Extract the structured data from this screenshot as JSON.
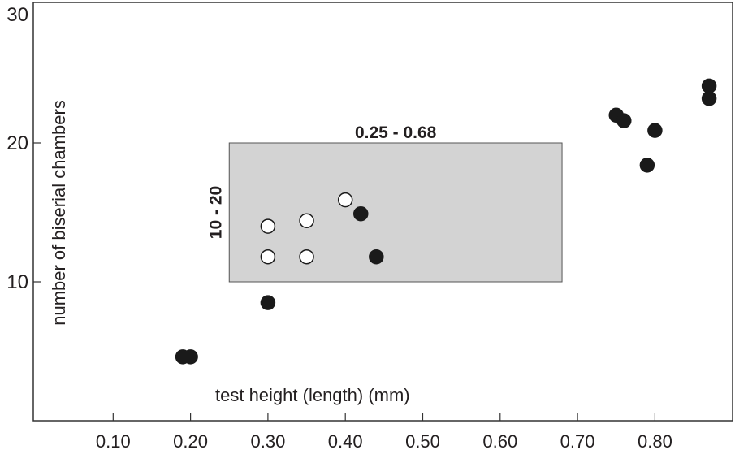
{
  "chart_data": {
    "type": "scatter",
    "xlabel": "test height (length) (mm)",
    "ylabel": "number of biserial chambers",
    "xlim": [
      0,
      0.9
    ],
    "ylim": [
      0,
      30
    ],
    "x_ticks": [
      0.1,
      0.2,
      0.3,
      0.4,
      0.5,
      0.6,
      0.7,
      0.8
    ],
    "x_tick_labels": [
      "0.10",
      "0.20",
      "0.30",
      "0.40",
      "0.50",
      "0.60",
      "0.70",
      "0.80"
    ],
    "y_ticks": [
      10,
      20,
      30
    ],
    "y_tick_labels": [
      "10",
      "20",
      "30"
    ],
    "grid": false,
    "highlight_region": {
      "x_range": [
        0.25,
        0.68
      ],
      "y_range": [
        10,
        20
      ],
      "x_label": "0.25 - 0.68",
      "y_label": "10 - 20",
      "color": "#d3d3d3"
    },
    "series": [
      {
        "marker": "filled-circle",
        "color": "#1a1a1a",
        "points": [
          [
            0.19,
            4.6
          ],
          [
            0.2,
            4.6
          ],
          [
            0.3,
            8.5
          ],
          [
            0.42,
            14.9
          ],
          [
            0.44,
            11.8
          ],
          [
            0.75,
            22.0
          ],
          [
            0.76,
            21.6
          ],
          [
            0.79,
            18.4
          ],
          [
            0.8,
            20.9
          ],
          [
            0.87,
            24.1
          ],
          [
            0.87,
            23.2
          ]
        ]
      },
      {
        "marker": "open-circle",
        "color": "#ffffff",
        "points": [
          [
            0.3,
            14.0
          ],
          [
            0.3,
            11.8
          ],
          [
            0.35,
            14.4
          ],
          [
            0.35,
            11.8
          ],
          [
            0.4,
            15.9
          ]
        ]
      }
    ]
  }
}
